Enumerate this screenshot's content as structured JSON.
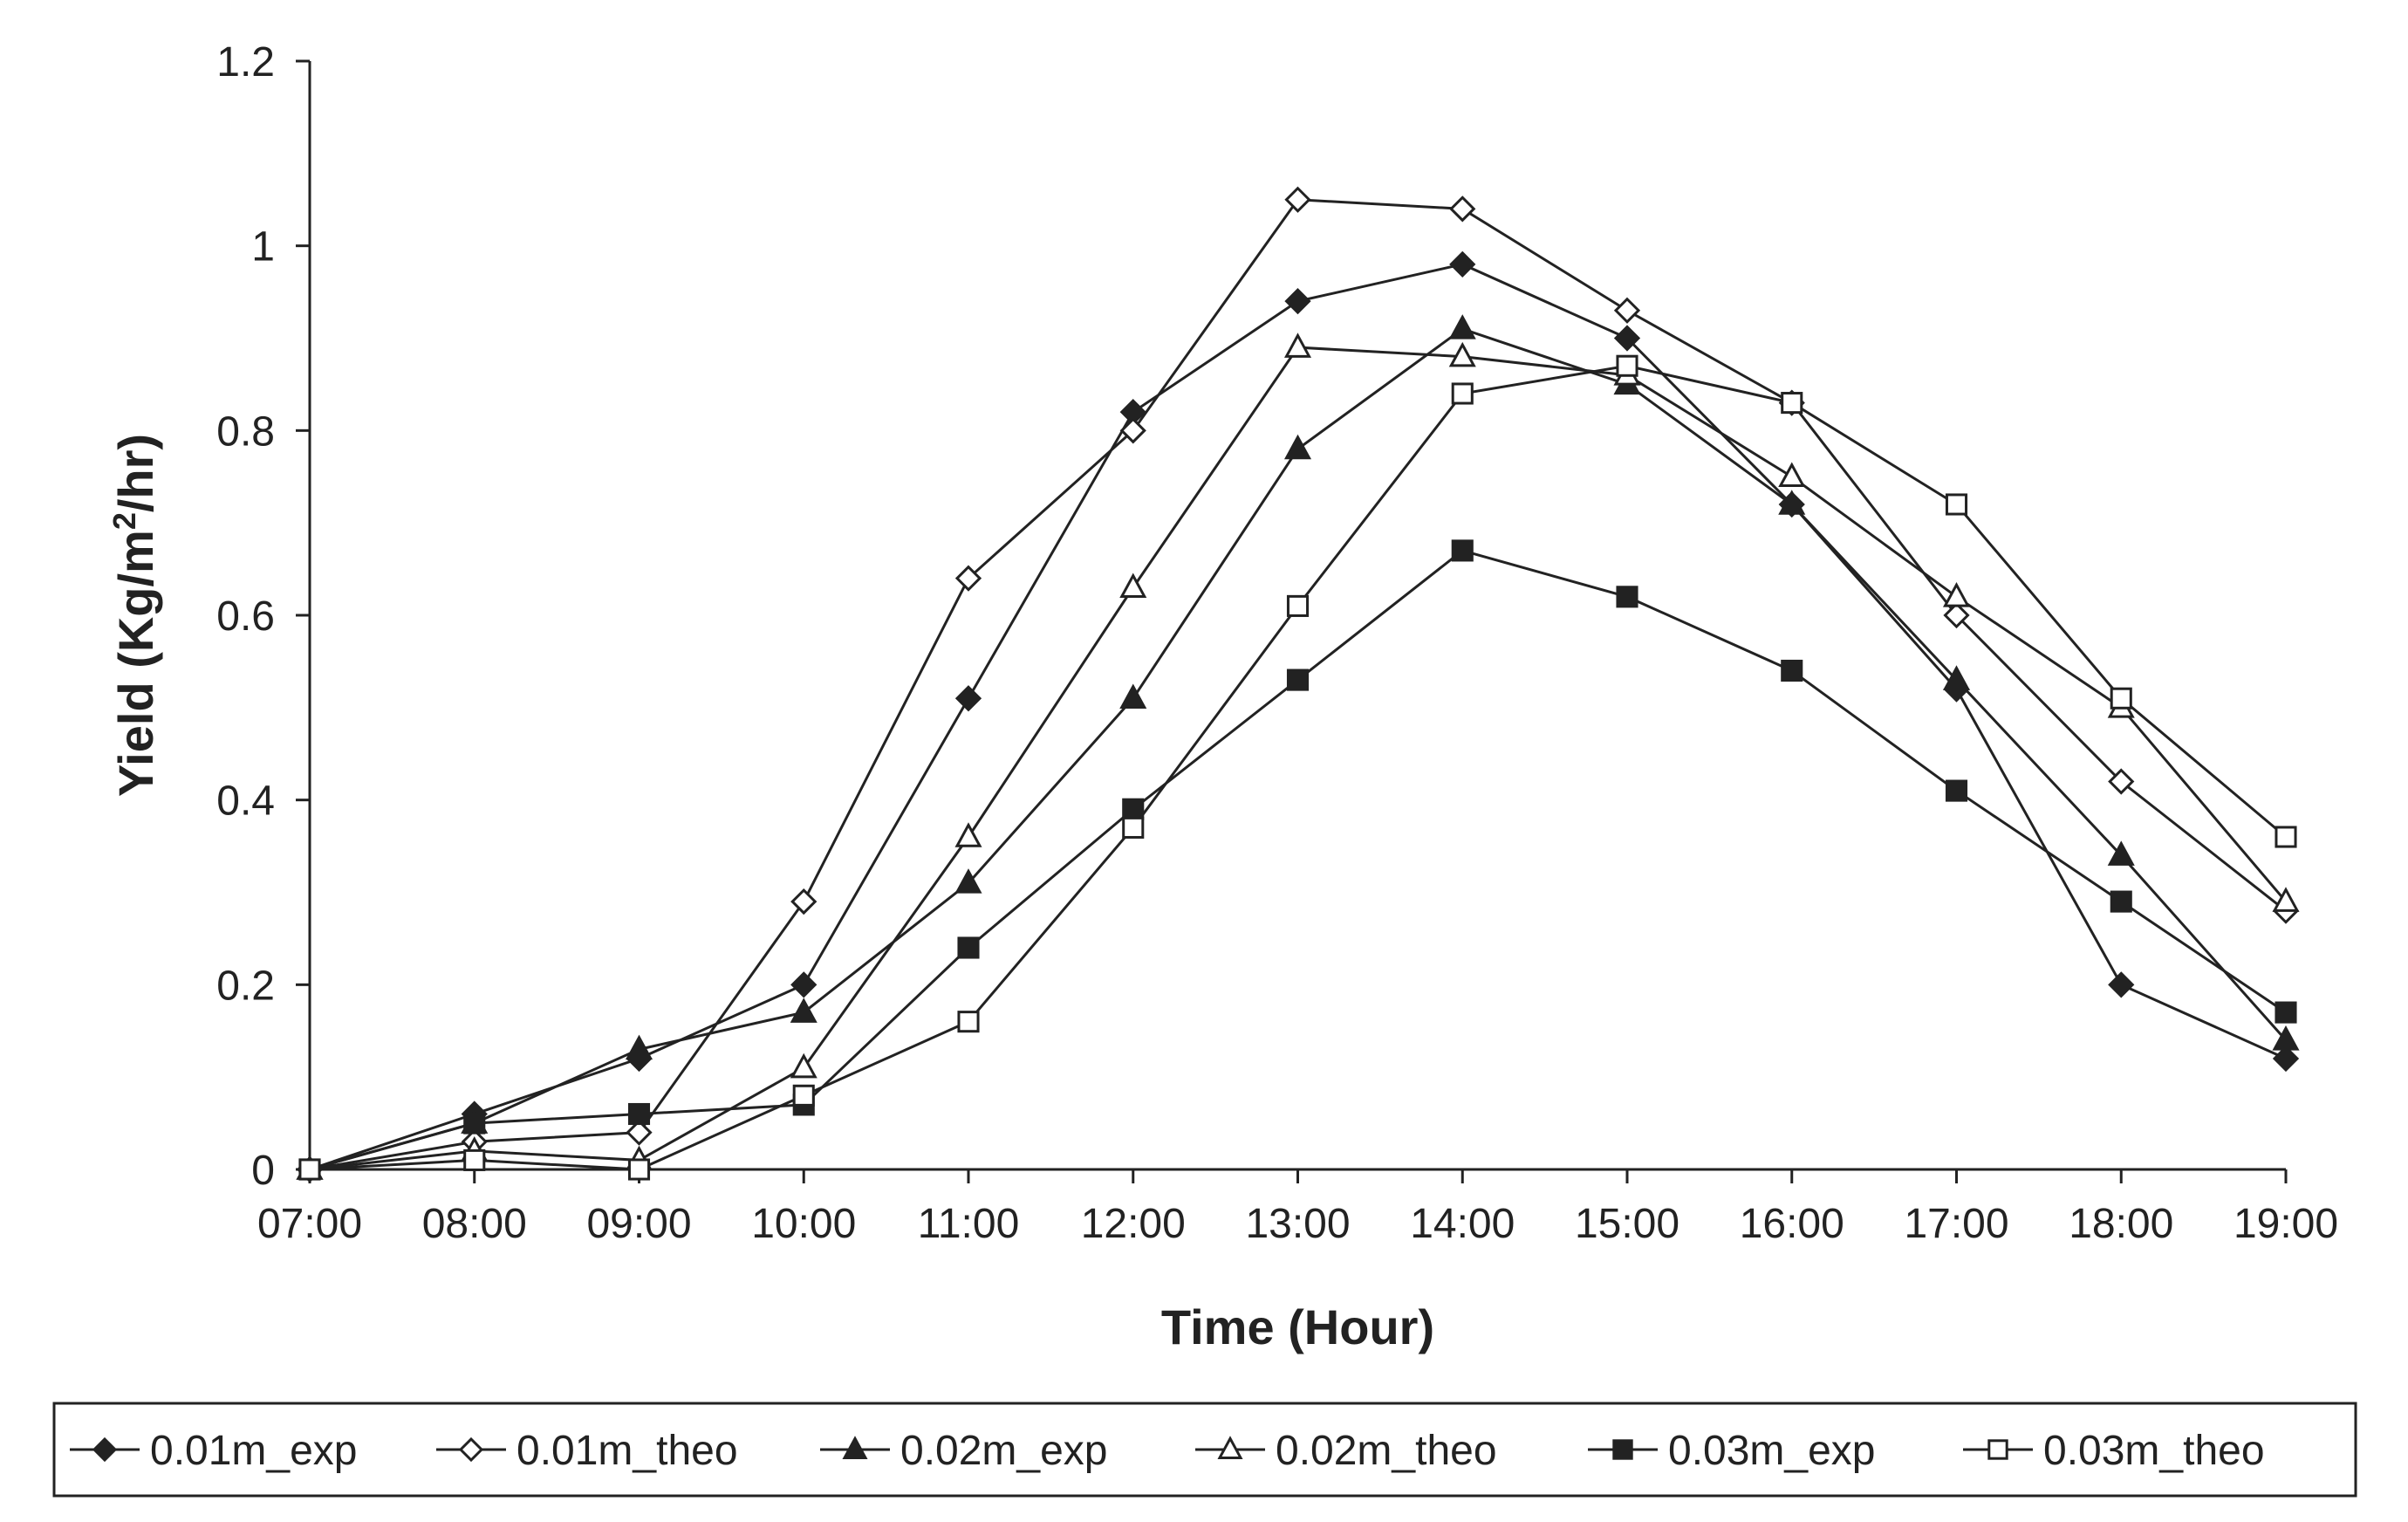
{
  "chart_data": {
    "type": "line",
    "title": "",
    "xlabel": "Time (Hour)",
    "ylabel_main": "Yield (Kg/m",
    "ylabel_sup": "2",
    "ylabel_tail": "/hr)",
    "categories": [
      "07:00",
      "08:00",
      "09:00",
      "10:00",
      "11:00",
      "12:00",
      "13:00",
      "14:00",
      "15:00",
      "16:00",
      "17:00",
      "18:00",
      "19:00"
    ],
    "ylim": [
      0,
      1.2
    ],
    "yticks": [
      0,
      0.2,
      0.4,
      0.6,
      0.8,
      1,
      1.2
    ],
    "ytick_labels": [
      "0",
      "0.2",
      "0.4",
      "0.6",
      "0.8",
      "1",
      "1.2"
    ],
    "grid": false,
    "legend_position": "bottom",
    "series": [
      {
        "name": "0.01m_exp",
        "marker": "diamond",
        "filled": true,
        "values": [
          0,
          0.06,
          0.12,
          0.2,
          0.51,
          0.82,
          0.94,
          0.98,
          0.9,
          0.72,
          0.52,
          0.2,
          0.12
        ]
      },
      {
        "name": "0.01m_theo",
        "marker": "diamond",
        "filled": false,
        "values": [
          0,
          0.03,
          0.04,
          0.29,
          0.64,
          0.8,
          1.05,
          1.04,
          0.93,
          0.83,
          0.6,
          0.42,
          0.28
        ]
      },
      {
        "name": "0.02m_exp",
        "marker": "triangle",
        "filled": true,
        "values": [
          0,
          0.05,
          0.13,
          0.17,
          0.31,
          0.51,
          0.78,
          0.91,
          0.85,
          0.72,
          0.53,
          0.34,
          0.14
        ]
      },
      {
        "name": "0.02m_theo",
        "marker": "triangle",
        "filled": false,
        "values": [
          0,
          0.02,
          0.01,
          0.11,
          0.36,
          0.63,
          0.89,
          0.88,
          0.86,
          0.75,
          0.62,
          0.5,
          0.29
        ]
      },
      {
        "name": "0.03m_exp",
        "marker": "square",
        "filled": true,
        "values": [
          0,
          0.05,
          0.06,
          0.07,
          0.24,
          0.39,
          0.53,
          0.67,
          0.62,
          0.54,
          0.41,
          0.29,
          0.17
        ]
      },
      {
        "name": "0.03m_theo",
        "marker": "square",
        "filled": false,
        "values": [
          0,
          0.01,
          0.0,
          0.08,
          0.16,
          0.37,
          0.61,
          0.84,
          0.87,
          0.83,
          0.72,
          0.51,
          0.36
        ]
      }
    ],
    "colors": {
      "line": "#222222",
      "background": "#ffffff"
    }
  }
}
